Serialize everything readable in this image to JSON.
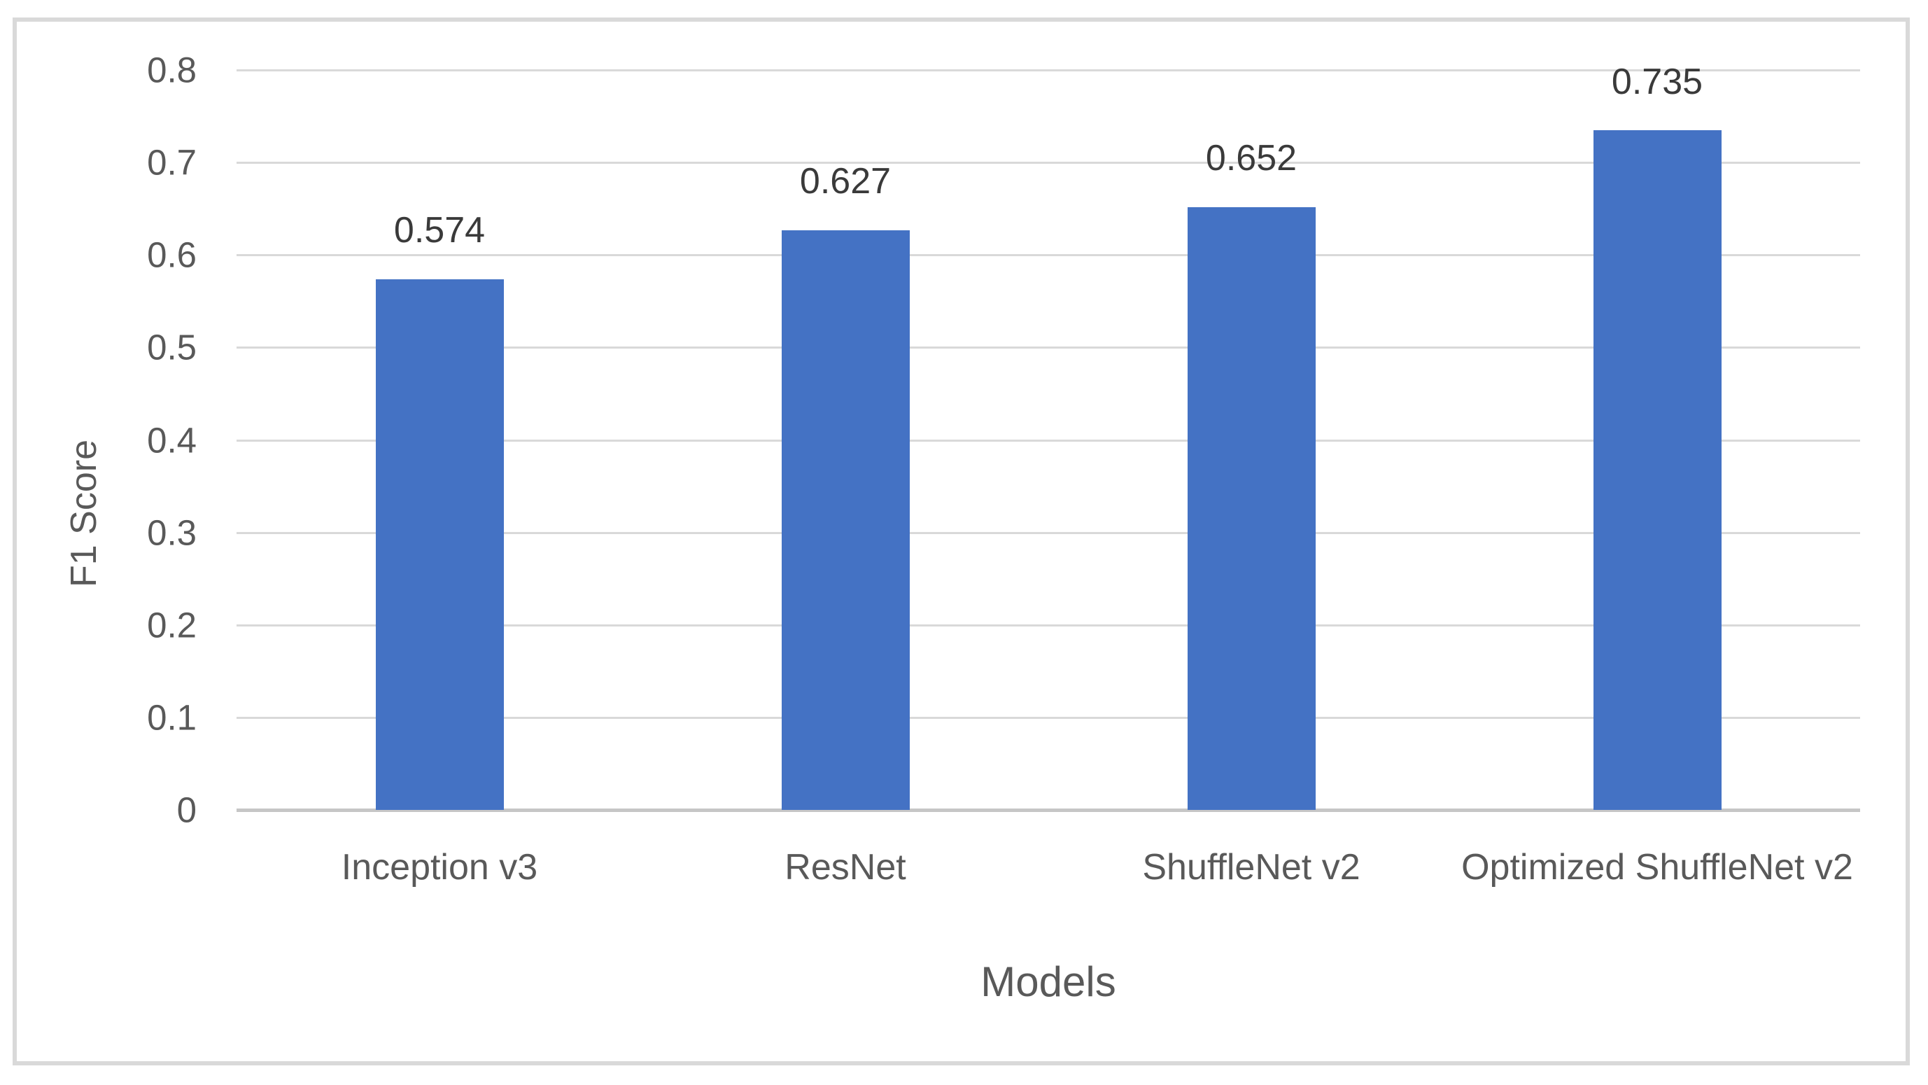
{
  "chart_data": {
    "type": "bar",
    "title": "",
    "xlabel": "Models",
    "ylabel": "F1 Score",
    "categories": [
      "Inception v3",
      "ResNet",
      "ShuffleNet v2",
      "Optimized ShuffleNet v2"
    ],
    "values": [
      0.574,
      0.627,
      0.652,
      0.735
    ],
    "data_labels": [
      "0.574",
      "0.627",
      "0.652",
      "0.735"
    ],
    "ylim": [
      0,
      0.8
    ],
    "ytick_interval": 0.1,
    "yticks": [
      "0",
      "0.1",
      "0.2",
      "0.3",
      "0.4",
      "0.5",
      "0.6",
      "0.7",
      "0.8"
    ],
    "grid": true,
    "legend": false,
    "colors": {
      "bar": "#4472C4",
      "gridline": "#D9D9D9",
      "axis_line": "#C6C6C6",
      "axis_text": "#595959",
      "data_label_text": "#3A3A3A",
      "chart_border": "#D9D9D9",
      "background": "#FFFFFF"
    }
  }
}
